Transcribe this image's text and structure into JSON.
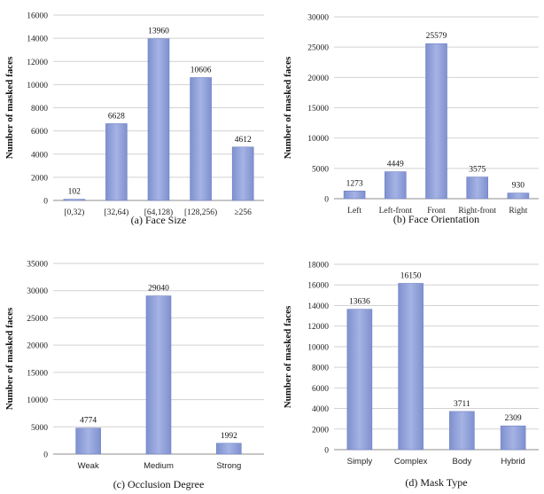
{
  "chart_data": [
    {
      "type": "bar",
      "caption": "(a) Face Size",
      "ylabel": "Number of masked faces",
      "categories": [
        "[0,32)",
        "[32,64)",
        "[64,128)",
        "[128,256)",
        "≥256"
      ],
      "values": [
        102,
        6628,
        13960,
        10606,
        4612
      ],
      "ylim": [
        0,
        16000
      ],
      "yticks": [
        0,
        2000,
        4000,
        6000,
        8000,
        10000,
        12000,
        14000,
        16000
      ],
      "grid": true,
      "bar_color": "#8f9fd7"
    },
    {
      "type": "bar",
      "caption": "(b) Face Orientation",
      "ylabel": "Number of masked faces",
      "categories": [
        "Left",
        "Left-front",
        "Front",
        "Right-front",
        "Right"
      ],
      "values": [
        1273,
        4449,
        25579,
        3575,
        930
      ],
      "ylim": [
        0,
        30000
      ],
      "yticks": [
        0,
        5000,
        10000,
        15000,
        20000,
        25000,
        30000
      ],
      "grid": true,
      "bar_color": "#8f9fd7"
    },
    {
      "type": "bar",
      "caption": "(c) Occlusion Degree",
      "ylabel": "Number of masked faces",
      "categories": [
        "Weak",
        "Medium",
        "Strong"
      ],
      "values": [
        4774,
        29040,
        1992
      ],
      "ylim": [
        0,
        35000
      ],
      "yticks": [
        0,
        5000,
        10000,
        15000,
        20000,
        25000,
        30000,
        35000
      ],
      "grid": true,
      "bar_color": "#8f9fd7"
    },
    {
      "type": "bar",
      "caption": "(d) Mask Type",
      "ylabel": "Number of masked faces",
      "categories": [
        "Simply",
        "Complex",
        "Body",
        "Hybrid"
      ],
      "values": [
        13636,
        16150,
        3711,
        2309
      ],
      "ylim": [
        0,
        18000
      ],
      "yticks": [
        0,
        2000,
        4000,
        6000,
        8000,
        10000,
        12000,
        14000,
        16000,
        18000
      ],
      "grid": true,
      "bar_color": "#8f9fd7"
    }
  ]
}
